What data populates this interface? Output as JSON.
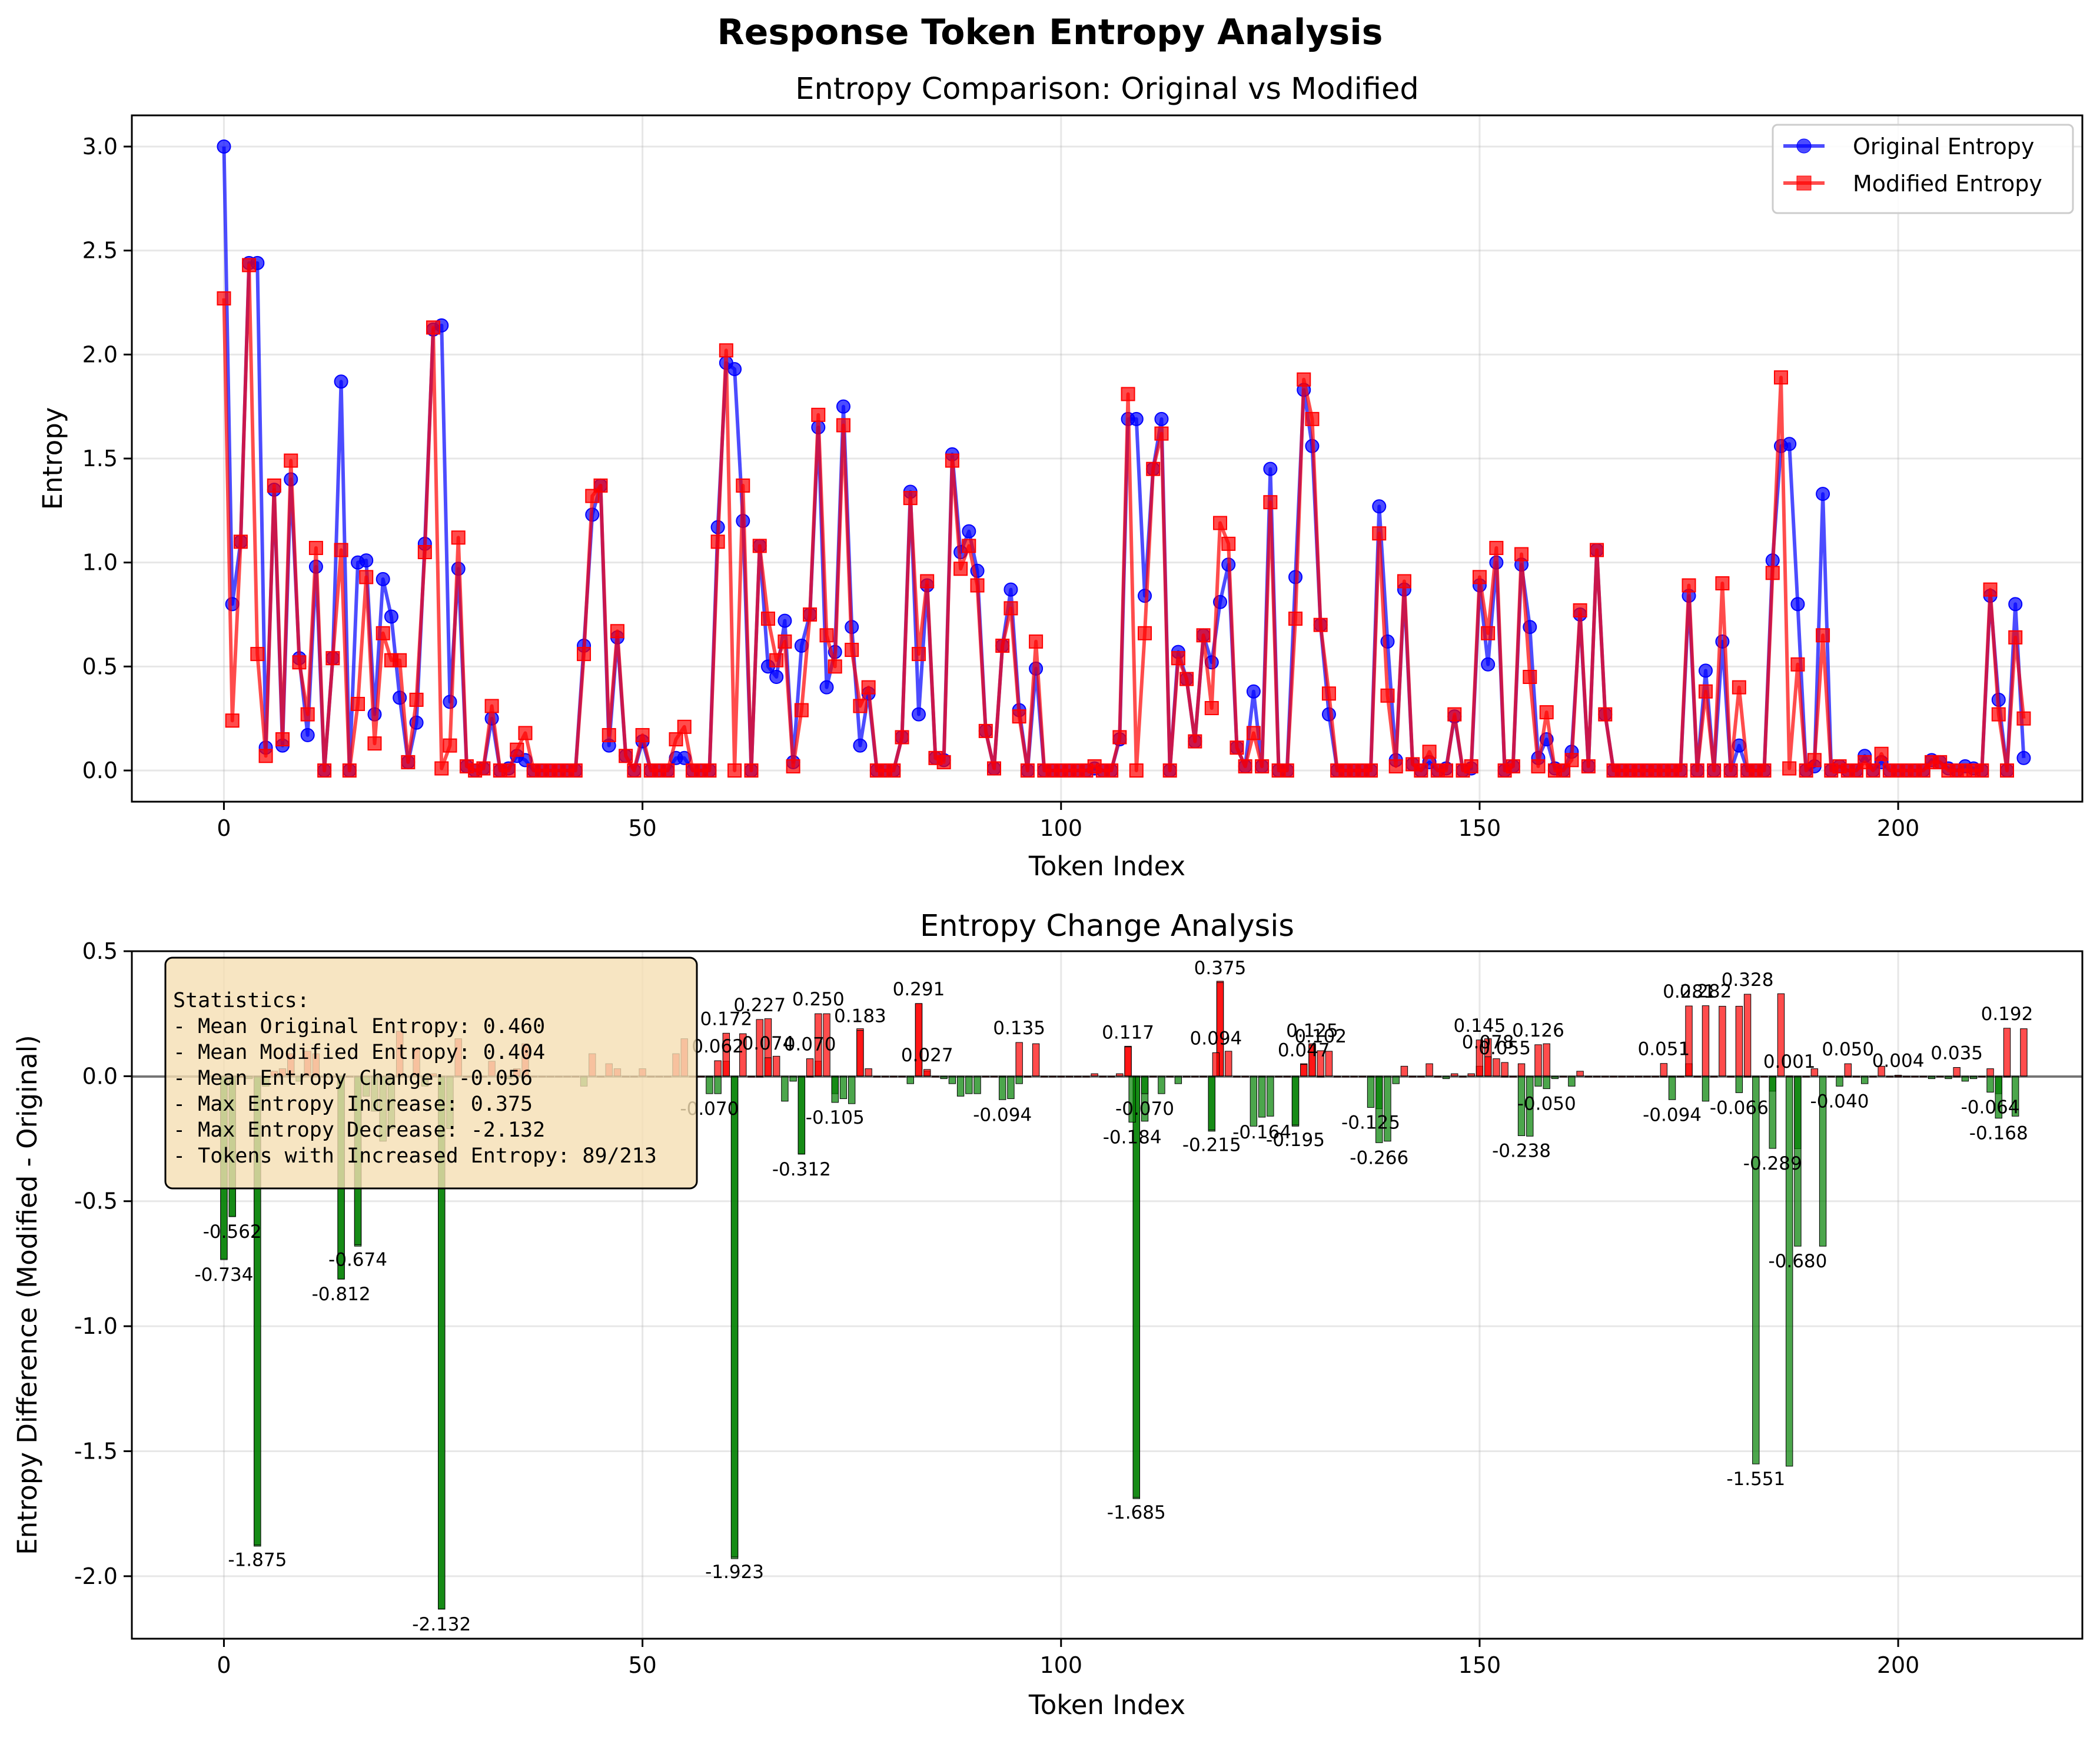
{
  "figure": {
    "suptitle": "Response Token Entropy Analysis"
  },
  "colors": {
    "original": "#0000ff",
    "modified": "#ff0000",
    "increase_bar": "#ff0000",
    "decrease_bar": "#008000",
    "stats_box": "#f5deb3"
  },
  "chart_data": [
    {
      "type": "line",
      "title": "Entropy Comparison: Original vs Modified",
      "xlabel": "Token Index",
      "ylabel": "Entropy",
      "xlim": [
        -11,
        222
      ],
      "ylim": [
        -0.15,
        3.15
      ],
      "xticks": [
        0,
        50,
        100,
        150,
        200
      ],
      "yticks": [
        0.0,
        0.5,
        1.0,
        1.5,
        2.0,
        2.5,
        3.0
      ],
      "grid": true,
      "legend_position": "top-right",
      "series": [
        {
          "name": "Original Entropy",
          "marker": "circle",
          "values": [
            3.0,
            0.8,
            1.1,
            2.44,
            2.44,
            0.11,
            1.35,
            0.12,
            1.4,
            0.54,
            0.17,
            0.98,
            0.0,
            0.54,
            1.87,
            0.0,
            1.0,
            1.01,
            0.27,
            0.92,
            0.74,
            0.35,
            0.04,
            0.23,
            1.09,
            2.12,
            2.14,
            0.33,
            0.97,
            0.02,
            0.0,
            0.01,
            0.25,
            0.0,
            0.01,
            0.07,
            0.05,
            0.0,
            0.0,
            0.0,
            0.0,
            0.0,
            0.0,
            0.6,
            1.23,
            1.37,
            0.12,
            0.64,
            0.07,
            0.0,
            0.14,
            0.0,
            0.0,
            0.0,
            0.06,
            0.06,
            0.0,
            0.0,
            0.0,
            1.17,
            1.96,
            1.93,
            1.2,
            0.0,
            1.08,
            0.5,
            0.45,
            0.72,
            0.04,
            0.6,
            0.75,
            1.65,
            0.4,
            0.57,
            1.75,
            0.69,
            0.12,
            0.37,
            0.0,
            0.0,
            0.0,
            0.16,
            1.34,
            0.27,
            0.89,
            0.06,
            0.05,
            1.52,
            1.05,
            1.15,
            0.96,
            0.19,
            0.01,
            0.6,
            0.87,
            0.29,
            0.0,
            0.49,
            0.0,
            0.0,
            0.0,
            0.0,
            0.0,
            0.0,
            0.01,
            0.0,
            0.0,
            0.15,
            1.69,
            1.69,
            0.84,
            1.45,
            1.69,
            0.0,
            0.57,
            0.44,
            0.14,
            0.65,
            0.52,
            0.81,
            0.99,
            0.11,
            0.02,
            0.38,
            0.02,
            1.45,
            0.0,
            0.0,
            0.93,
            1.83,
            1.56,
            0.7,
            0.27,
            0.0,
            0.0,
            0.0,
            0.0,
            0.0,
            1.27,
            0.62,
            0.05,
            0.87,
            0.03,
            0.0,
            0.04,
            0.0,
            0.01,
            0.26,
            0.0,
            0.01,
            0.89,
            0.51,
            1.0,
            0.0,
            0.02,
            0.99,
            0.69,
            0.06,
            0.15,
            0.01,
            0.0,
            0.09,
            0.75,
            0.02,
            1.06,
            0.27,
            0.0,
            0.0,
            0.0,
            0.0,
            0.0,
            0.0,
            0.0,
            0.0,
            0.0,
            0.84,
            0.0,
            0.48,
            0.0,
            0.62,
            0.0,
            0.12,
            0.0,
            0.0,
            0.0,
            1.01,
            1.56,
            1.57,
            0.8,
            0.0,
            0.02,
            1.33,
            0.0,
            0.02,
            0.0,
            0.0,
            0.07,
            0.0,
            0.04,
            0.0,
            0.0,
            0.0,
            0.0,
            0.0,
            0.05,
            0.04,
            0.01,
            0.0,
            0.02,
            0.01,
            0.0,
            0.84,
            0.34,
            0.0,
            0.8,
            0.06
          ]
        },
        {
          "name": "Modified Entropy",
          "marker": "square",
          "values": [
            2.27,
            0.24,
            1.1,
            2.43,
            0.56,
            0.07,
            1.37,
            0.15,
            1.49,
            0.52,
            0.27,
            1.07,
            0.0,
            0.54,
            1.06,
            0.0,
            0.32,
            0.93,
            0.13,
            0.66,
            0.53,
            0.53,
            0.04,
            0.34,
            1.05,
            2.13,
            0.01,
            0.12,
            1.12,
            0.02,
            0.0,
            0.01,
            0.31,
            0.0,
            0.0,
            0.1,
            0.18,
            0.0,
            0.0,
            0.0,
            0.0,
            0.0,
            0.0,
            0.56,
            1.32,
            1.37,
            0.17,
            0.67,
            0.07,
            0.0,
            0.17,
            0.0,
            0.0,
            0.0,
            0.15,
            0.21,
            0.0,
            0.0,
            0.0,
            1.1,
            2.02,
            0.0,
            1.37,
            0.0,
            1.08,
            0.73,
            0.53,
            0.62,
            0.02,
            0.29,
            0.75,
            1.71,
            0.65,
            0.5,
            1.66,
            0.58,
            0.31,
            0.4,
            0.0,
            0.0,
            0.0,
            0.16,
            1.31,
            0.56,
            0.91,
            0.06,
            0.04,
            1.49,
            0.97,
            1.08,
            0.89,
            0.19,
            0.01,
            0.6,
            0.78,
            0.26,
            0.0,
            0.62,
            0.0,
            0.0,
            0.0,
            0.0,
            0.0,
            0.0,
            0.02,
            0.0,
            0.0,
            0.16,
            1.81,
            0.0,
            0.66,
            1.45,
            1.62,
            0.0,
            0.54,
            0.44,
            0.14,
            0.65,
            0.3,
            1.19,
            1.09,
            0.11,
            0.02,
            0.18,
            0.02,
            1.29,
            0.0,
            0.0,
            0.73,
            1.88,
            1.69,
            0.7,
            0.37,
            0.0,
            0.0,
            0.0,
            0.0,
            0.0,
            1.14,
            0.36,
            0.02,
            0.91,
            0.03,
            0.0,
            0.09,
            0.0,
            0.0,
            0.27,
            0.0,
            0.02,
            0.93,
            0.66,
            1.07,
            0.0,
            0.02,
            1.04,
            0.45,
            0.02,
            0.28,
            0.0,
            0.0,
            0.05,
            0.77,
            0.02,
            1.06,
            0.27,
            0.0,
            0.0,
            0.0,
            0.0,
            0.0,
            0.0,
            0.0,
            0.0,
            0.0,
            0.89,
            0.0,
            0.38,
            0.0,
            0.9,
            0.0,
            0.4,
            0.0,
            0.0,
            0.0,
            0.95,
            1.89,
            0.01,
            0.51,
            0.0,
            0.05,
            0.65,
            0.0,
            0.02,
            0.0,
            0.0,
            0.04,
            0.0,
            0.08,
            0.0,
            0.0,
            0.0,
            0.0,
            0.0,
            0.04,
            0.04,
            0.0,
            0.0,
            0.0,
            0.0,
            0.0,
            0.87,
            0.27,
            0.0,
            0.64,
            0.25
          ]
        }
      ]
    },
    {
      "type": "bar",
      "title": "Entropy Change Analysis",
      "xlabel": "Token Index",
      "ylabel": "Entropy Difference (Modified - Original)",
      "xlim": [
        -11,
        222
      ],
      "ylim": [
        -2.25,
        0.5
      ],
      "xticks": [
        0,
        50,
        100,
        150,
        200
      ],
      "yticks": [
        0.5,
        0.0,
        -0.5,
        -1.0,
        -1.5,
        -2.0
      ],
      "grid": true,
      "labeled_bars": [
        {
          "x": 0,
          "value": -0.734
        },
        {
          "x": 1,
          "value": -0.562
        },
        {
          "x": 4,
          "value": -1.875
        },
        {
          "x": 14,
          "value": -0.812
        },
        {
          "x": 16,
          "value": -0.674
        },
        {
          "x": 26,
          "value": -2.132
        },
        {
          "x": 61,
          "value": -1.923
        },
        {
          "x": 58,
          "value": -0.07
        },
        {
          "x": 59,
          "value": 0.062
        },
        {
          "x": 60,
          "value": 0.172
        },
        {
          "x": 64,
          "value": 0.227
        },
        {
          "x": 65,
          "value": 0.074
        },
        {
          "x": 69,
          "value": -0.312
        },
        {
          "x": 71,
          "value": 0.25
        },
        {
          "x": 70,
          "value": 0.07
        },
        {
          "x": 73,
          "value": -0.105
        },
        {
          "x": 76,
          "value": 0.183
        },
        {
          "x": 83,
          "value": 0.291
        },
        {
          "x": 84,
          "value": 0.027
        },
        {
          "x": 95,
          "value": 0.135
        },
        {
          "x": 93,
          "value": -0.094
        },
        {
          "x": 108,
          "value": 0.117
        },
        {
          "x": 109,
          "value": -1.685
        },
        {
          "x": 108.5,
          "value": -0.184
        },
        {
          "x": 110,
          "value": -0.07
        },
        {
          "x": 118,
          "value": -0.215
        },
        {
          "x": 119,
          "value": 0.375
        },
        {
          "x": 118.5,
          "value": 0.094
        },
        {
          "x": 124,
          "value": -0.164
        },
        {
          "x": 128,
          "value": -0.195
        },
        {
          "x": 130,
          "value": 0.125
        },
        {
          "x": 131,
          "value": 0.102
        },
        {
          "x": 129,
          "value": 0.047
        },
        {
          "x": 138,
          "value": -0.266
        },
        {
          "x": 137,
          "value": -0.125
        },
        {
          "x": 150,
          "value": 0.145
        },
        {
          "x": 151,
          "value": 0.078
        },
        {
          "x": 153,
          "value": 0.055
        },
        {
          "x": 155,
          "value": -0.238
        },
        {
          "x": 157,
          "value": 0.126
        },
        {
          "x": 158,
          "value": -0.05
        },
        {
          "x": 172,
          "value": 0.051
        },
        {
          "x": 173,
          "value": -0.094
        },
        {
          "x": 175,
          "value": 0.281
        },
        {
          "x": 177,
          "value": 0.282
        },
        {
          "x": 181,
          "value": -0.066
        },
        {
          "x": 182,
          "value": 0.328
        },
        {
          "x": 183,
          "value": -1.551
        },
        {
          "x": 185,
          "value": -0.289
        },
        {
          "x": 188,
          "value": -0.68
        },
        {
          "x": 187,
          "value": 0.001
        },
        {
          "x": 194,
          "value": 0.05
        },
        {
          "x": 193,
          "value": -0.04
        },
        {
          "x": 200,
          "value": 0.004
        },
        {
          "x": 207,
          "value": 0.035
        },
        {
          "x": 211,
          "value": -0.064
        },
        {
          "x": 212,
          "value": -0.168
        },
        {
          "x": 213,
          "value": 0.192
        }
      ]
    }
  ],
  "stats_box": {
    "heading": "Statistics:",
    "lines": [
      "- Mean Original Entropy: 0.460",
      "- Mean Modified Entropy: 0.404",
      "- Mean Entropy Change: -0.056",
      "- Max Entropy Increase: 0.375",
      "- Max Entropy Decrease: -2.132",
      "- Tokens with Increased Entropy: 89/213"
    ]
  }
}
